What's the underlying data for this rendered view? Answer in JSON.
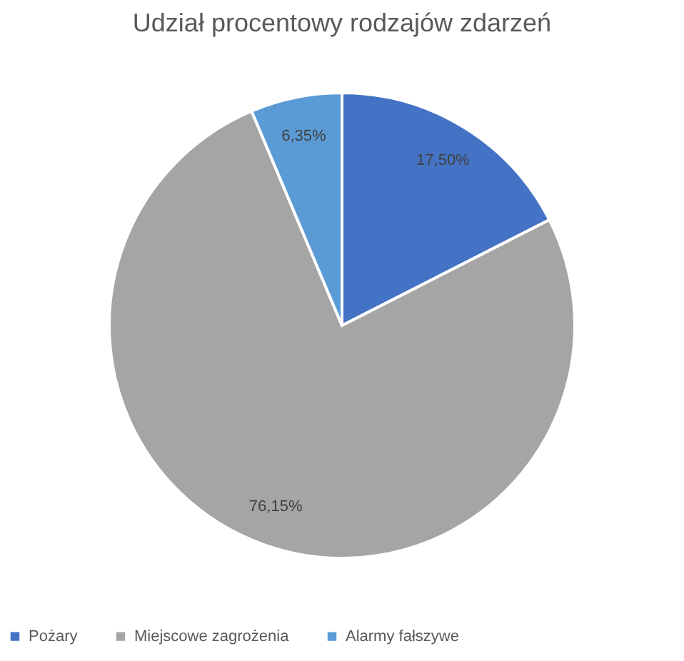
{
  "chart_data": {
    "type": "pie",
    "title": "Udział procentowy rodzajów zdarzeń",
    "categories": [
      "Pożary",
      "Miejscowe zagrożenia",
      "Alarmy fałszywe"
    ],
    "values": [
      17.5,
      76.15,
      6.35
    ],
    "colors": [
      "#4472c4",
      "#a5a5a5",
      "#5b9bd5"
    ],
    "value_labels": [
      "17,50%",
      "76,15%",
      "6,35%"
    ],
    "legend": "bottom"
  }
}
